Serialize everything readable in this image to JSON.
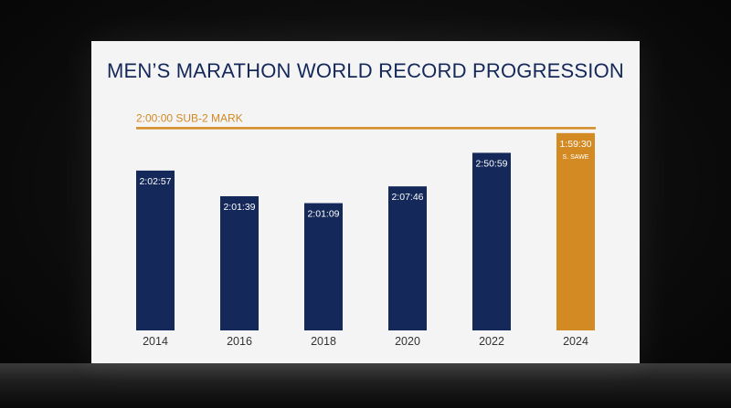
{
  "title": "MEN’S MARATHON WORLD RECORD PROGRESSION",
  "colors": {
    "bar": "#14285a",
    "highlight": "#d48a22",
    "axis_text": "#333333",
    "background": "#f4f4f4"
  },
  "chart_data": {
    "type": "bar",
    "title": "MEN’S MARATHON WORLD RECORD PROGRESSION",
    "xlabel": "",
    "ylabel": "",
    "grid": false,
    "categories": [
      "2014",
      "2016",
      "2018",
      "2020",
      "2022",
      "2024"
    ],
    "value_labels": [
      "2:02:57",
      "2:01:39",
      "2:01:09",
      "2:07:46",
      "2:50:59",
      "1:59:30"
    ],
    "sub_labels": [
      "",
      "",
      "",
      "",
      "",
      "S. SAWE"
    ],
    "values": [
      162,
      136,
      129,
      146,
      180,
      200
    ],
    "highlight_index": 5,
    "reference_line": {
      "label": "2:00:00 SUB-2 MARK",
      "value": 205
    },
    "ylim": [
      0,
      210
    ]
  }
}
